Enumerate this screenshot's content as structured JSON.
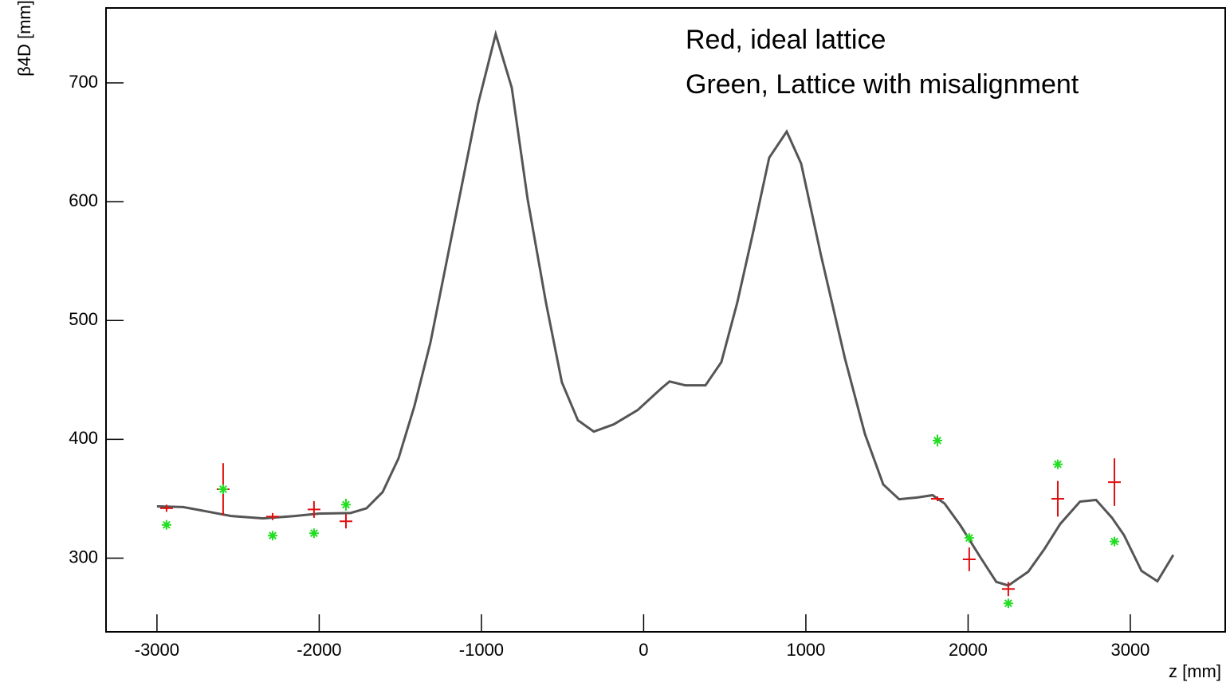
{
  "chart_data": {
    "type": "line",
    "xlabel": "z [mm]",
    "ylabel": "β4D [mm]",
    "annotations": [
      "Red, ideal lattice",
      "Green, Lattice with misalignment"
    ],
    "xlim": [
      -3314,
      3585
    ],
    "ylim": [
      238,
      763
    ],
    "xticks": [
      -3000,
      -2000,
      -1000,
      0,
      1000,
      2000,
      3000
    ],
    "yticks": [
      300,
      400,
      500,
      600,
      700
    ],
    "series": [
      {
        "style": "line",
        "color": "#555555",
        "x": [
          -3000,
          -2838,
          -2543,
          -2346,
          -2150,
          -2002,
          -1806,
          -1708,
          -1609,
          -1511,
          -1413,
          -1314,
          -1216,
          -1118,
          -1020,
          -912,
          -813,
          -715,
          -602,
          -504,
          -405,
          -307,
          -184,
          -37,
          110,
          160,
          258,
          381,
          479,
          577,
          676,
          774,
          882,
          971,
          1093,
          1241,
          1364,
          1477,
          1575,
          1683,
          1781,
          1855,
          1953,
          2076,
          2174,
          2248,
          2371,
          2469,
          2568,
          2690,
          2789,
          2887,
          2961,
          3069,
          3167,
          3265
        ],
        "values": [
          343.6,
          343,
          335.5,
          333.5,
          335.5,
          337.5,
          338,
          342,
          355.6,
          384,
          428,
          481.6,
          548.6,
          615.6,
          682.6,
          741,
          696,
          602,
          515,
          448,
          416,
          406.5,
          412.6,
          424.6,
          443,
          448.7,
          445.4,
          445.4,
          465,
          515,
          575,
          637,
          659,
          632,
          555,
          468,
          404.5,
          362,
          349.6,
          351,
          353,
          346,
          327.5,
          300.7,
          280,
          277,
          288.6,
          307.4,
          328.8,
          347.6,
          349,
          334,
          319.4,
          289.3,
          280.6,
          302.7
        ]
      },
      {
        "style": "errorbar",
        "color": "#e01010",
        "x": [
          -2941,
          -2592,
          -2287,
          -2032,
          -1835,
          1811,
          2007,
          2248,
          2553,
          2902
        ],
        "values": [
          342,
          358,
          335,
          341,
          331,
          350,
          299,
          274,
          350,
          364
        ],
        "errors": [
          3,
          22,
          3,
          7,
          6,
          2,
          10,
          6,
          15,
          20
        ]
      },
      {
        "style": "star",
        "color": "#22dd22",
        "x": [
          -2941,
          -2592,
          -2287,
          -2032,
          -1835,
          1811,
          2007,
          2248,
          2553,
          2902
        ],
        "values": [
          328,
          358,
          319,
          321,
          345,
          399,
          317,
          262,
          379,
          314
        ],
        "errors": [
          3,
          4,
          2,
          2,
          5,
          5,
          3,
          3,
          3,
          3
        ]
      }
    ]
  }
}
